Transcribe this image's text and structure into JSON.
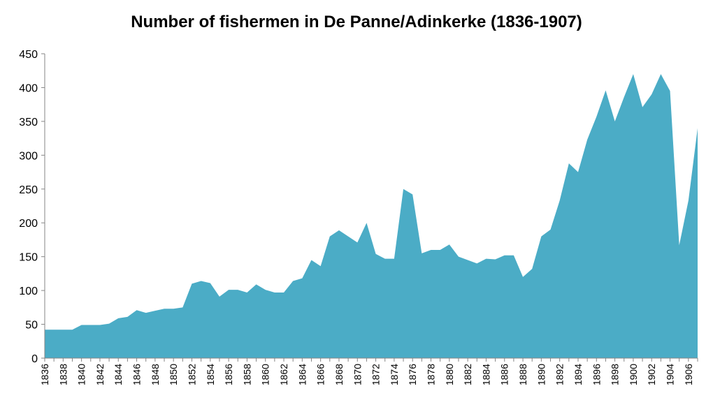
{
  "chart_data": {
    "type": "area",
    "title": "Number of fishermen in De Panne/Adinkerke (1836-1907)",
    "xlabel": "",
    "ylabel": "",
    "ylim": [
      0,
      450
    ],
    "yticks": [
      0,
      50,
      100,
      150,
      200,
      250,
      300,
      350,
      400,
      450
    ],
    "x": [
      1836,
      1837,
      1838,
      1839,
      1840,
      1841,
      1842,
      1843,
      1844,
      1845,
      1846,
      1847,
      1848,
      1849,
      1850,
      1851,
      1852,
      1853,
      1854,
      1855,
      1856,
      1857,
      1858,
      1859,
      1860,
      1861,
      1862,
      1863,
      1864,
      1865,
      1866,
      1867,
      1868,
      1869,
      1870,
      1871,
      1872,
      1873,
      1874,
      1875,
      1876,
      1877,
      1878,
      1879,
      1880,
      1881,
      1882,
      1883,
      1884,
      1885,
      1886,
      1887,
      1888,
      1889,
      1890,
      1891,
      1892,
      1893,
      1894,
      1895,
      1896,
      1897,
      1898,
      1899,
      1900,
      1901,
      1902,
      1903,
      1904,
      1905,
      1906,
      1907
    ],
    "xtick_labels": [
      "1836",
      "1838",
      "1840",
      "1842",
      "1844",
      "1846",
      "1848",
      "1850",
      "1852",
      "1854",
      "1856",
      "1858",
      "1860",
      "1862",
      "1864",
      "1866",
      "1868",
      "1870",
      "1872",
      "1874",
      "1876",
      "1878",
      "1880",
      "1882",
      "1884",
      "1886",
      "1888",
      "1890",
      "1892",
      "1894",
      "1896",
      "1898",
      "1900",
      "1902",
      "1904",
      "1906"
    ],
    "values": [
      42,
      42,
      42,
      42,
      49,
      49,
      49,
      51,
      59,
      61,
      71,
      67,
      70,
      73,
      73,
      75,
      110,
      114,
      111,
      91,
      101,
      101,
      97,
      109,
      101,
      97,
      97,
      114,
      118,
      145,
      136,
      180,
      189,
      180,
      171,
      200,
      154,
      147,
      147,
      250,
      242,
      155,
      160,
      160,
      168,
      150,
      145,
      140,
      147,
      146,
      152,
      152,
      120,
      132,
      180,
      190,
      233,
      288,
      275,
      323,
      357,
      396,
      350,
      386,
      420,
      371,
      390,
      420,
      395,
      167,
      233,
      340
    ],
    "grid": false,
    "legend": "none",
    "colors": {
      "fill": "#4BACC6",
      "axis": "#868686"
    }
  }
}
